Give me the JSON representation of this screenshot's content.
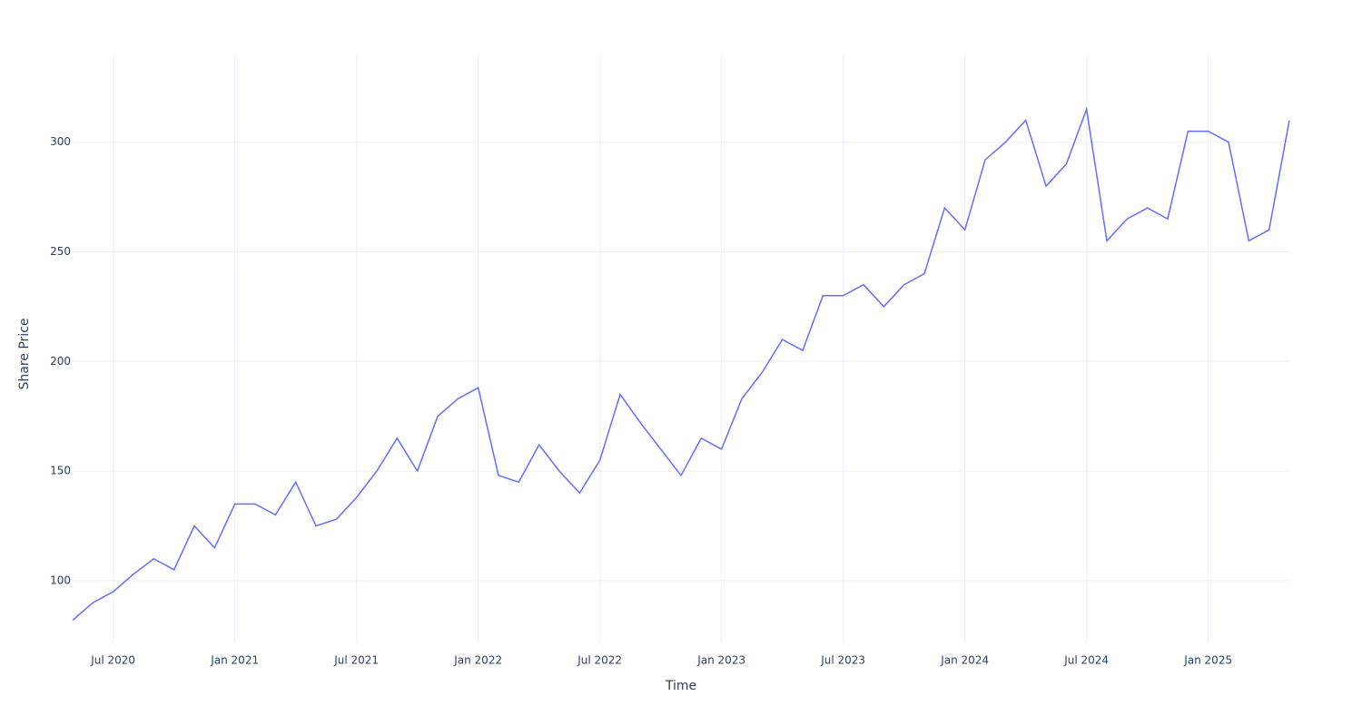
{
  "chart_data": {
    "type": "line",
    "x_label": "Time",
    "y_label": "Share Price",
    "x": [
      "2020-05",
      "2020-06",
      "2020-07",
      "2020-08",
      "2020-09",
      "2020-10",
      "2020-11",
      "2020-12",
      "2021-01",
      "2021-02",
      "2021-03",
      "2021-04",
      "2021-05",
      "2021-06",
      "2021-07",
      "2021-08",
      "2021-09",
      "2021-10",
      "2021-11",
      "2021-12",
      "2022-01",
      "2022-02",
      "2022-03",
      "2022-04",
      "2022-05",
      "2022-06",
      "2022-07",
      "2022-08",
      "2022-09",
      "2022-10",
      "2022-11",
      "2022-12",
      "2023-01",
      "2023-02",
      "2023-03",
      "2023-04",
      "2023-05",
      "2023-06",
      "2023-07",
      "2023-08",
      "2023-09",
      "2023-10",
      "2023-11",
      "2023-12",
      "2024-01",
      "2024-02",
      "2024-03",
      "2024-04",
      "2024-05",
      "2024-06",
      "2024-07",
      "2024-08",
      "2024-09",
      "2024-10",
      "2024-11",
      "2024-12",
      "2025-01",
      "2025-02",
      "2025-03",
      "2025-04",
      "2025-05"
    ],
    "series": [
      {
        "name": "Share Price",
        "color": "#636efa",
        "values": [
          82,
          90,
          95,
          103,
          110,
          105,
          125,
          115,
          135,
          135,
          130,
          145,
          125,
          128,
          138,
          150,
          165,
          150,
          175,
          183,
          188,
          148,
          145,
          162,
          150,
          140,
          155,
          185,
          172,
          160,
          148,
          165,
          160,
          183,
          195,
          210,
          205,
          230,
          230,
          235,
          225,
          235,
          240,
          270,
          260,
          292,
          300,
          310,
          280,
          290,
          315,
          255,
          265,
          270,
          265,
          305,
          305,
          300,
          255,
          260,
          310
        ]
      }
    ],
    "xlim": [
      "2020-05",
      "2025-05"
    ],
    "xticks": [
      {
        "value": "2020-07",
        "label": "Jul 2020"
      },
      {
        "value": "2021-01",
        "label": "Jan 2021"
      },
      {
        "value": "2021-07",
        "label": "Jul 2021"
      },
      {
        "value": "2022-01",
        "label": "Jan 2022"
      },
      {
        "value": "2022-07",
        "label": "Jul 2022"
      },
      {
        "value": "2023-01",
        "label": "Jan 2023"
      },
      {
        "value": "2023-07",
        "label": "Jul 2023"
      },
      {
        "value": "2024-01",
        "label": "Jan 2024"
      },
      {
        "value": "2024-07",
        "label": "Jul 2024"
      },
      {
        "value": "2025-01",
        "label": "Jan 2025"
      }
    ],
    "ylim": [
      71,
      340
    ],
    "yticks": [
      100,
      150,
      200,
      250,
      300
    ],
    "grid": true
  }
}
